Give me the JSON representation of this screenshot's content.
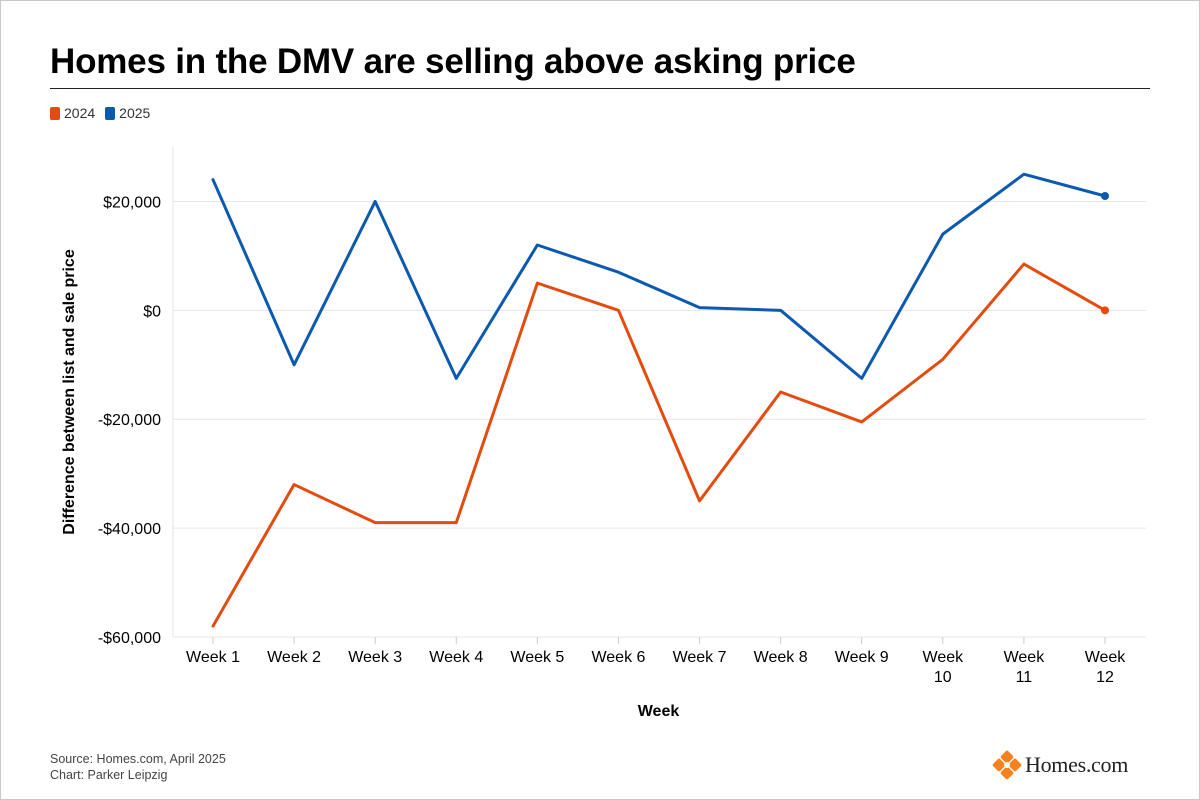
{
  "title": "Homes in the DMV are selling above asking price",
  "footer": {
    "source": "Source: Homes.com, April 2025",
    "credit": "Chart: Parker Leipzig"
  },
  "logo": {
    "text": "Homes.com",
    "icon": "homes-com-logo-icon",
    "color": "#f5821f"
  },
  "chart_data": {
    "type": "line",
    "categories": [
      [
        "Week 1"
      ],
      [
        "Week 2"
      ],
      [
        "Week 3"
      ],
      [
        "Week 4"
      ],
      [
        "Week 5"
      ],
      [
        "Week 6"
      ],
      [
        "Week 7"
      ],
      [
        "Week 8"
      ],
      [
        "Week 9"
      ],
      [
        "Week",
        "10"
      ],
      [
        "Week",
        "11"
      ],
      [
        "Week",
        "12"
      ]
    ],
    "series": [
      {
        "name": "2024",
        "color": "#e34c0e",
        "values": [
          -58000,
          -32000,
          -39000,
          -39000,
          5000,
          0,
          -35000,
          -15000,
          -20500,
          -9000,
          8500,
          0
        ]
      },
      {
        "name": "2025",
        "color": "#0b5ab0",
        "values": [
          24000,
          -10000,
          20000,
          -12500,
          12000,
          7000,
          500,
          0,
          -12500,
          14000,
          25000,
          21000
        ]
      }
    ],
    "ylim": [
      -60000,
      30000
    ],
    "yticks": [
      -60000,
      -40000,
      -20000,
      0,
      20000
    ],
    "ytick_labels": [
      "-$60,000",
      "-$40,000",
      "-$20,000",
      "$0",
      "$20,000"
    ],
    "xlabel": "Week",
    "ylabel": "Difference between list and sale price",
    "grid": true,
    "legend_position": "top-left",
    "end_markers": true
  }
}
